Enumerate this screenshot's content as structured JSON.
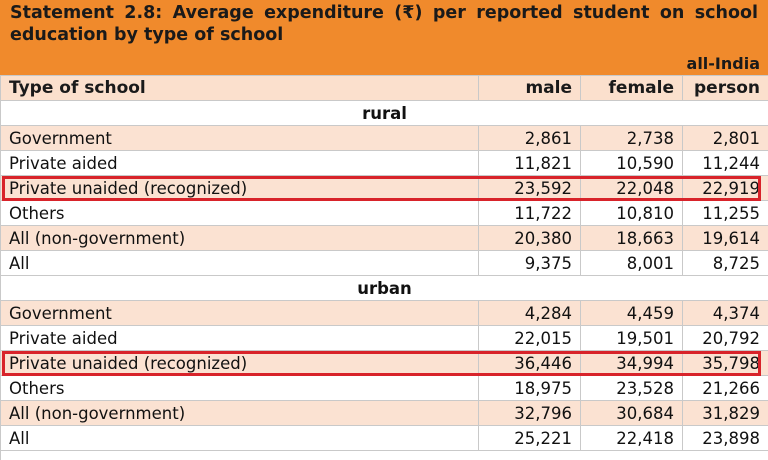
{
  "statement": {
    "title": "Statement 2.8: Average expenditure (₹) per reported student on school education by type of school",
    "scope": "all-India"
  },
  "columns": [
    "Type of school",
    "male",
    "female",
    "person"
  ],
  "sections": [
    {
      "name": "rural",
      "rows": [
        {
          "label": "Government",
          "male": "2,861",
          "female": "2,738",
          "person": "2,801"
        },
        {
          "label": "Private aided",
          "male": "11,821",
          "female": "10,590",
          "person": "11,244"
        },
        {
          "label": "Private unaided (recognized)",
          "male": "23,592",
          "female": "22,048",
          "person": "22,919"
        },
        {
          "label": "Others",
          "male": "11,722",
          "female": "10,810",
          "person": "11,255"
        },
        {
          "label": "All (non-government)",
          "male": "20,380",
          "female": "18,663",
          "person": "19,614"
        },
        {
          "label": "All",
          "male": "9,375",
          "female": "8,001",
          "person": "8,725"
        }
      ]
    },
    {
      "name": "urban",
      "rows": [
        {
          "label": "Government",
          "male": "4,284",
          "female": "4,459",
          "person": "4,374"
        },
        {
          "label": "Private aided",
          "male": "22,015",
          "female": "19,501",
          "person": "20,792"
        },
        {
          "label": "Private unaided (recognized)",
          "male": "36,446",
          "female": "34,994",
          "person": "35,798"
        },
        {
          "label": "Others",
          "male": "18,975",
          "female": "23,528",
          "person": "21,266"
        },
        {
          "label": "All (non-government)",
          "male": "32,796",
          "female": "30,684",
          "person": "31,829"
        },
        {
          "label": "All",
          "male": "25,221",
          "female": "22,418",
          "person": "23,898"
        }
      ]
    }
  ],
  "colors": {
    "header_orange": "#f08a2c",
    "row_shade": "#fbe2d2",
    "highlight_red": "#d8232a"
  }
}
